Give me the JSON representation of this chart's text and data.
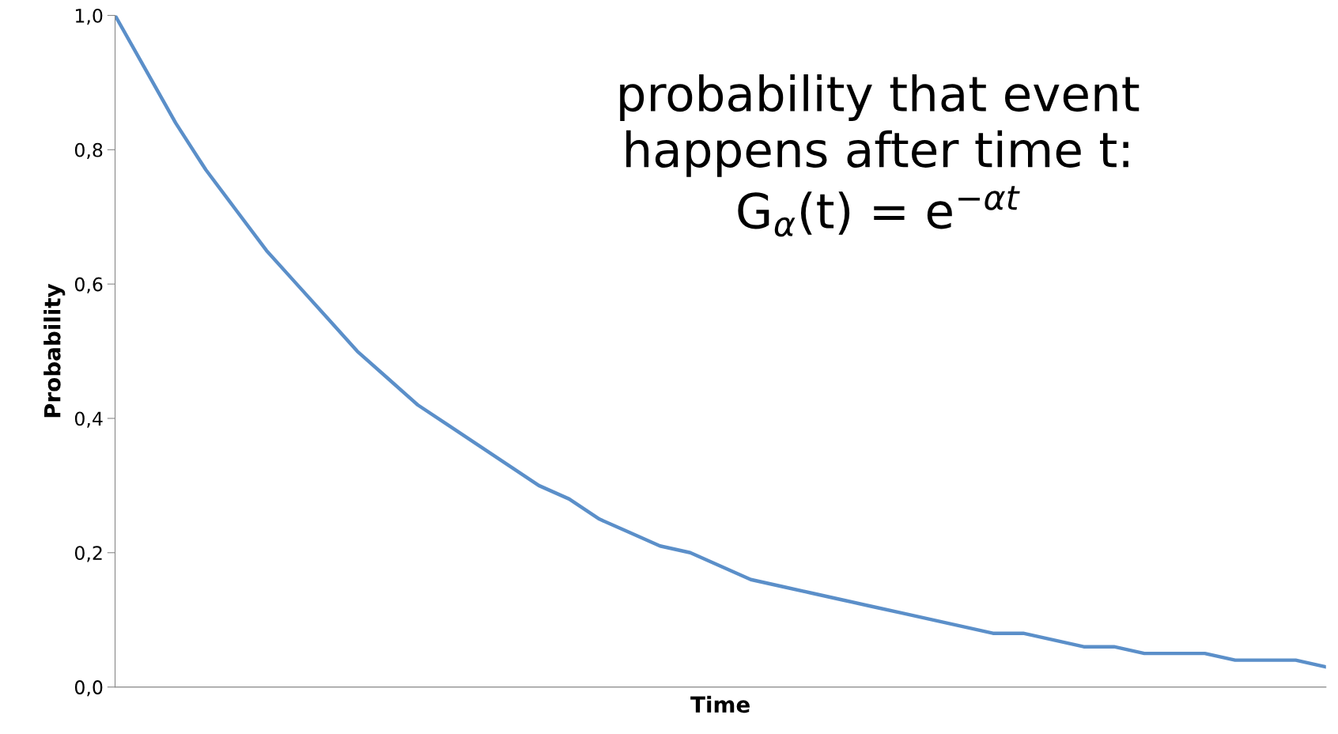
{
  "chart_data": {
    "type": "line",
    "xlabel": "Time",
    "ylabel": "Probability",
    "categories": [
      null,
      null,
      null,
      null,
      null,
      null,
      null,
      null,
      null,
      null,
      null,
      null,
      null,
      null,
      null,
      null,
      null,
      null,
      null,
      null,
      null,
      null,
      null,
      null,
      null,
      null,
      null,
      null,
      null,
      null,
      null,
      null,
      null,
      null,
      null,
      null,
      null,
      null,
      null,
      null,
      null
    ],
    "series": [
      {
        "color": "#5b8fc9",
        "values": [
          1.0,
          0.92,
          0.84,
          0.77,
          0.71,
          0.65,
          0.6,
          0.55,
          0.5,
          0.46,
          0.42,
          0.39,
          0.36,
          0.33,
          0.3,
          0.28,
          0.25,
          0.23,
          0.21,
          0.2,
          0.18,
          0.16,
          0.15,
          0.14,
          0.13,
          0.12,
          0.11,
          0.1,
          0.09,
          0.08,
          0.08,
          0.07,
          0.06,
          0.06,
          0.05,
          0.05,
          0.05,
          0.04,
          0.04,
          0.04,
          0.03
        ]
      }
    ],
    "ylim": [
      0,
      1
    ],
    "yticks": [
      {
        "value": 0,
        "label": "0,0"
      },
      {
        "value": 0.2,
        "label": "0,2"
      },
      {
        "value": 0.4,
        "label": "0,4"
      },
      {
        "value": 0.6,
        "label": "0,6"
      },
      {
        "value": 0.8,
        "label": "0,8"
      },
      {
        "value": 1,
        "label": "1,0"
      }
    ],
    "tick_labels": "y",
    "grid": false,
    "legend": false,
    "marker": "none",
    "line_style": "solid",
    "annotations": [
      "probability that event\nhappens after time t:\nG$_{α}$(t) = e$^{−αt}$"
    ]
  }
}
